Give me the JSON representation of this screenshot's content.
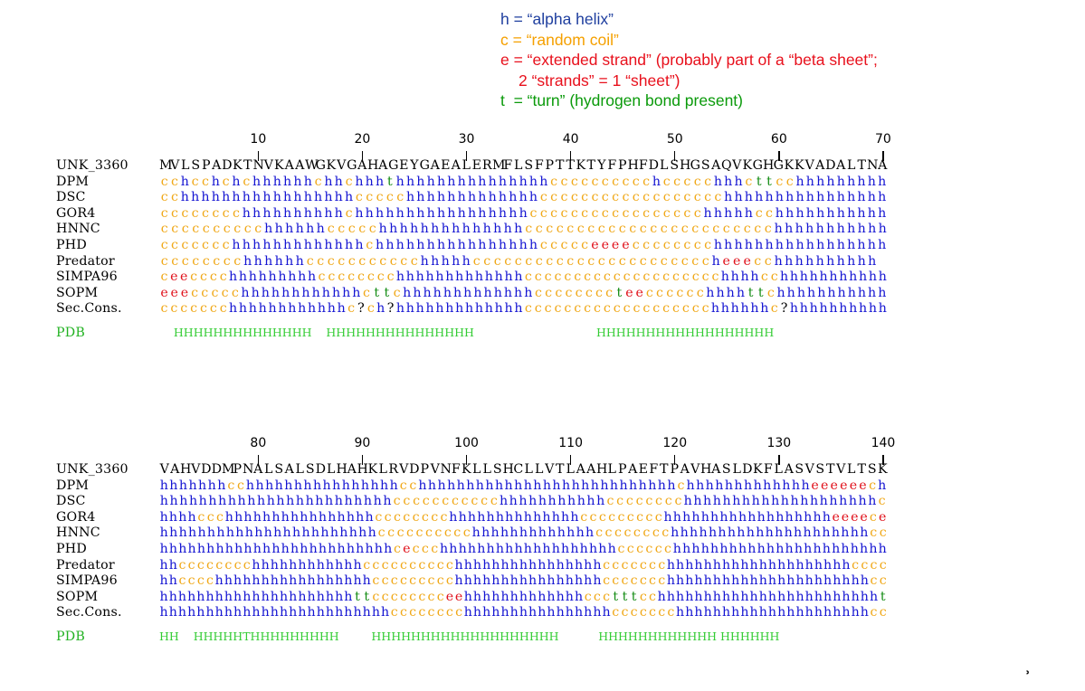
{
  "legend": [
    {
      "text": "h = “alpha helix”",
      "color": "#1f3f9f"
    },
    {
      "text": "c = “random coil”",
      "color": "#f5a000"
    },
    {
      "text": "e = “extended strand” (probably part of a “beta sheet”;",
      "color": "#e8101c"
    },
    {
      "text": "2 “strands” = 1 “sheet”)",
      "color": "#e8101c",
      "indent": true
    },
    {
      "text": "t  = “turn” (hydrogen bond present)",
      "color": "#0a9a0a"
    }
  ],
  "colors": {
    "h": "#1414d2",
    "c": "#f0a818",
    "e": "#e0101a",
    "t": "#148c14",
    "?": "#000000",
    "aa": "#000000"
  },
  "blocks": [
    {
      "ticks": [
        {
          "label": "10",
          "pos": 10
        },
        {
          "label": "20",
          "pos": 20
        },
        {
          "label": "30",
          "pos": 30
        },
        {
          "label": "40",
          "pos": 40
        },
        {
          "label": "50",
          "pos": 50
        },
        {
          "label": "60",
          "pos": 60
        },
        {
          "label": "70",
          "pos": 70
        }
      ],
      "rows": [
        {
          "label": "UNK_3360",
          "seq": "MVLSPADKTNVKAAWGKVGAHAGEYGAEALERMFLSFPTTKTYFPHFDLSHGSAQVKGHGKKVADALTNA",
          "kind": "aa"
        },
        {
          "label": "DPM",
          "seq": "cchcchchchhhhhhchhchhhthhhhhhhhhhhhhhhcccccccccchccccchhhcttcchhhhhhhhh",
          "kind": "ss"
        },
        {
          "label": "DSC",
          "seq": "cchhhhhhhhhhhhhhhhhccccchhhhhhhhhhhhhcccccccccccccccccchhhhhhhhhhhhhhhh",
          "kind": "ss"
        },
        {
          "label": "GOR4",
          "seq": "cccccccchhhhhhhhhhchhhhhhhhhhhhhhhhhccccccccccccccccchhhhhcchhhhhhhhhhh",
          "kind": "ss"
        },
        {
          "label": "HNNC",
          "seq": "cccccccccchhhhhhccccchhhhhhhhhhhhhhcccccccccccccccccccccccchhhhhhhhhhh",
          "kind": "ss"
        },
        {
          "label": "PHD",
          "seq": "ccccccchhhhhhhhhhhhhchhhhhhhhhhhhhhhhccccceeeecccccccchhhhhhhhhhhhhhhhh",
          "kind": "ss"
        },
        {
          "label": "Predator",
          "seq": "cccccccchhhhhhccccccccccchhhhhcccccccccccccccccccccccheeecchhhhhhhhhh",
          "kind": "ss"
        },
        {
          "label": "SIMPA96",
          "seq": "ceecccchhhhhhhhhcccccccchhhhhhhhhhhhhcccccccccccccccccccchhhhcchhhhhhhhhhh",
          "kind": "ss"
        },
        {
          "label": "SOPM",
          "seq": "eeeccccchhhhhhhhhhhhcttchhhhhhhhhhhhhccccccccteecccccchhhhttchhhhhhhhhhh",
          "kind": "ss"
        },
        {
          "label": "Sec.Cons.",
          "seq": "ccccccchhhhhhhhhhhhc?ch?hhhhhhhhhhhhhccccccccccccccccccchhhhhhc?hhhhhhhhhh",
          "kind": "ss"
        },
        {
          "label": "PDB",
          "seq": "    HHHHHHHHHHHHHH    HHHHHHHHHHHHHHH                                  HHHHHHHHHHHHHHHHHH",
          "kind": "pdb"
        }
      ]
    },
    {
      "ticks": [
        {
          "label": "80",
          "pos": 10
        },
        {
          "label": "90",
          "pos": 20
        },
        {
          "label": "100",
          "pos": 30
        },
        {
          "label": "110",
          "pos": 40
        },
        {
          "label": "120",
          "pos": 50
        },
        {
          "label": "130",
          "pos": 60
        },
        {
          "label": "140",
          "pos": 70
        }
      ],
      "rows": [
        {
          "label": "UNK_3360",
          "seq": "VAHVDDMPNALSALSDLHAHKLRVDPVNFKLLSHCLLVTLAAHLPAEFTPAVHASLDKFLASVSTVLTSK",
          "kind": "aa"
        },
        {
          "label": "DPM",
          "seq": "hhhhhhhcchhhhhhhhhhhhhhhhcchhhhhhhhhhhhhhhhhhhhhhhhhhhchhhhhhhhhhhhheeeeeech",
          "kind": "ss"
        },
        {
          "label": "DSC",
          "seq": "hhhhhhhhhhhhhhhhhhhhhhhhccccccccccchhhhhhhhhhhcccccccchhhhhhhhhhhhhhhhhhhhc",
          "kind": "ss"
        },
        {
          "label": "GOR4",
          "seq": "hhhhccchhhhhhhhhhhhhhhhcccccccchhhhhhhhhhhhhhccccccccchhhhhhhhhhhhhhhhhheeeece",
          "kind": "ss"
        },
        {
          "label": "HNNC",
          "seq": "hhhhhhhhhhhhhhhhhhhhhhhcccccccccchhhhhhhhhhhhhcccccccchhhhhhhhhhhhhhhhhhhhhcc",
          "kind": "ss"
        },
        {
          "label": "PHD",
          "seq": "hhhhhhhhhhhhhhhhhhhhhhhhhceccchhhhhhhhhhhhhhhhhhhcccccchhhhhhhhhhhhhhhhhhhhhhh",
          "kind": "ss"
        },
        {
          "label": "Predator",
          "seq": "hhcccccccchhhhhhhhhhhhcccccccccchhhhhhhhhhhhhhhhccccccchhhhhhhhhhhhhhhhhhhhcccc",
          "kind": "ss"
        },
        {
          "label": "SIMPA96",
          "seq": "hhcccchhhhhhhhhhhhhhhhhccccccccchhhhhhhhhhhhhhhhccccccchhhhhhhhhhhhhhhhhhhhhhcc",
          "kind": "ss"
        },
        {
          "label": "SOPM",
          "seq": "hhhhhhhhhhhhhhhhhhhhhttcccccccceehhhhhhhhhhhhhccctttcchhhhhhhhhhhhhhhhhhhhhhhht",
          "kind": "ss"
        },
        {
          "label": "Sec.Cons.",
          "seq": "hhhhhhhhhhhhhhhhhhhhhhhhhcccccccchhhhhhhhhhhhhhhhccccccchhhhhhhhhhhhhhhhhhhhhcc",
          "kind": "ss"
        },
        {
          "label": "PDB",
          "seq": "HH    HHHHHTHHHHHHHHH         HHHHHHHHHHHHHHHHHHH           HHHHHHHHHHHH HHHHHH",
          "kind": "pdb"
        }
      ]
    }
  ],
  "corner_mark": "ʾ"
}
